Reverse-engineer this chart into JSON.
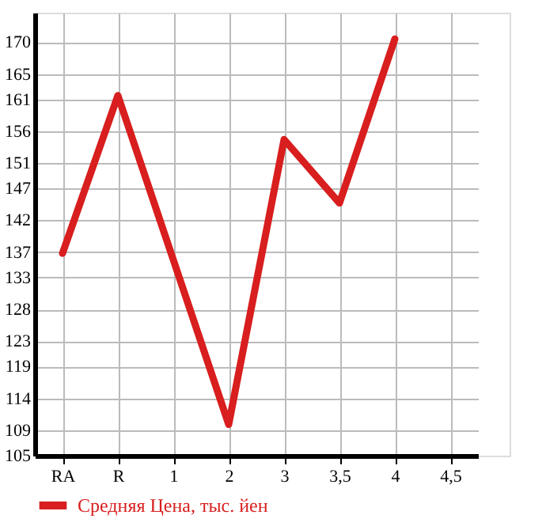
{
  "chart_data": {
    "type": "line",
    "categories": [
      "RA",
      "R",
      "1",
      "2",
      "3",
      "3,5",
      "4",
      "4,5"
    ],
    "series": [
      {
        "name": "Средняя Цена, тыс. йен",
        "color": "#d81e1e",
        "values": [
          136.8,
          161.6,
          135.8,
          109.9,
          154.7,
          144.7,
          170.5,
          null
        ]
      }
    ],
    "ylim": [
      105,
      174.64
    ],
    "yticks": [
      105,
      109,
      114,
      119,
      123,
      128,
      133,
      137,
      142,
      147,
      151,
      156,
      161,
      165,
      170
    ],
    "grid": true,
    "legend": "bottom",
    "marker": "none",
    "line_style": "solid"
  }
}
